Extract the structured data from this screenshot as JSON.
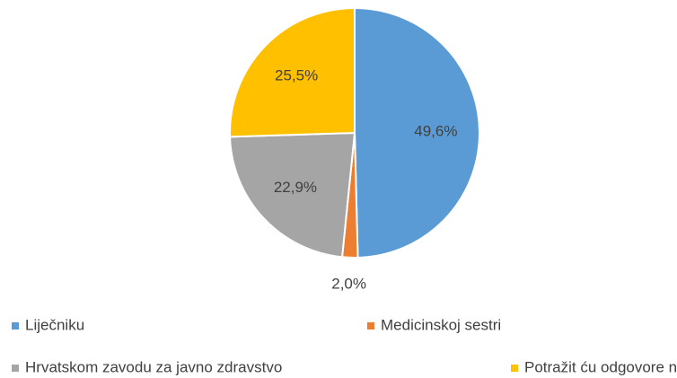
{
  "chart_data": {
    "type": "pie",
    "categories": [
      "Liječniku",
      "Medicinskoj sestri",
      "Hrvatskom zavodu za javno zdravstvo",
      "Potražit ću odgovore na internetu"
    ],
    "values": [
      49.6,
      2.0,
      22.9,
      25.5
    ],
    "value_labels": [
      "49,6%",
      "2,0%",
      "22,9%",
      "25,5%"
    ],
    "colors": [
      "#5b9bd5",
      "#ed7d31",
      "#a5a5a5",
      "#ffc000"
    ],
    "legend": "bottom"
  }
}
